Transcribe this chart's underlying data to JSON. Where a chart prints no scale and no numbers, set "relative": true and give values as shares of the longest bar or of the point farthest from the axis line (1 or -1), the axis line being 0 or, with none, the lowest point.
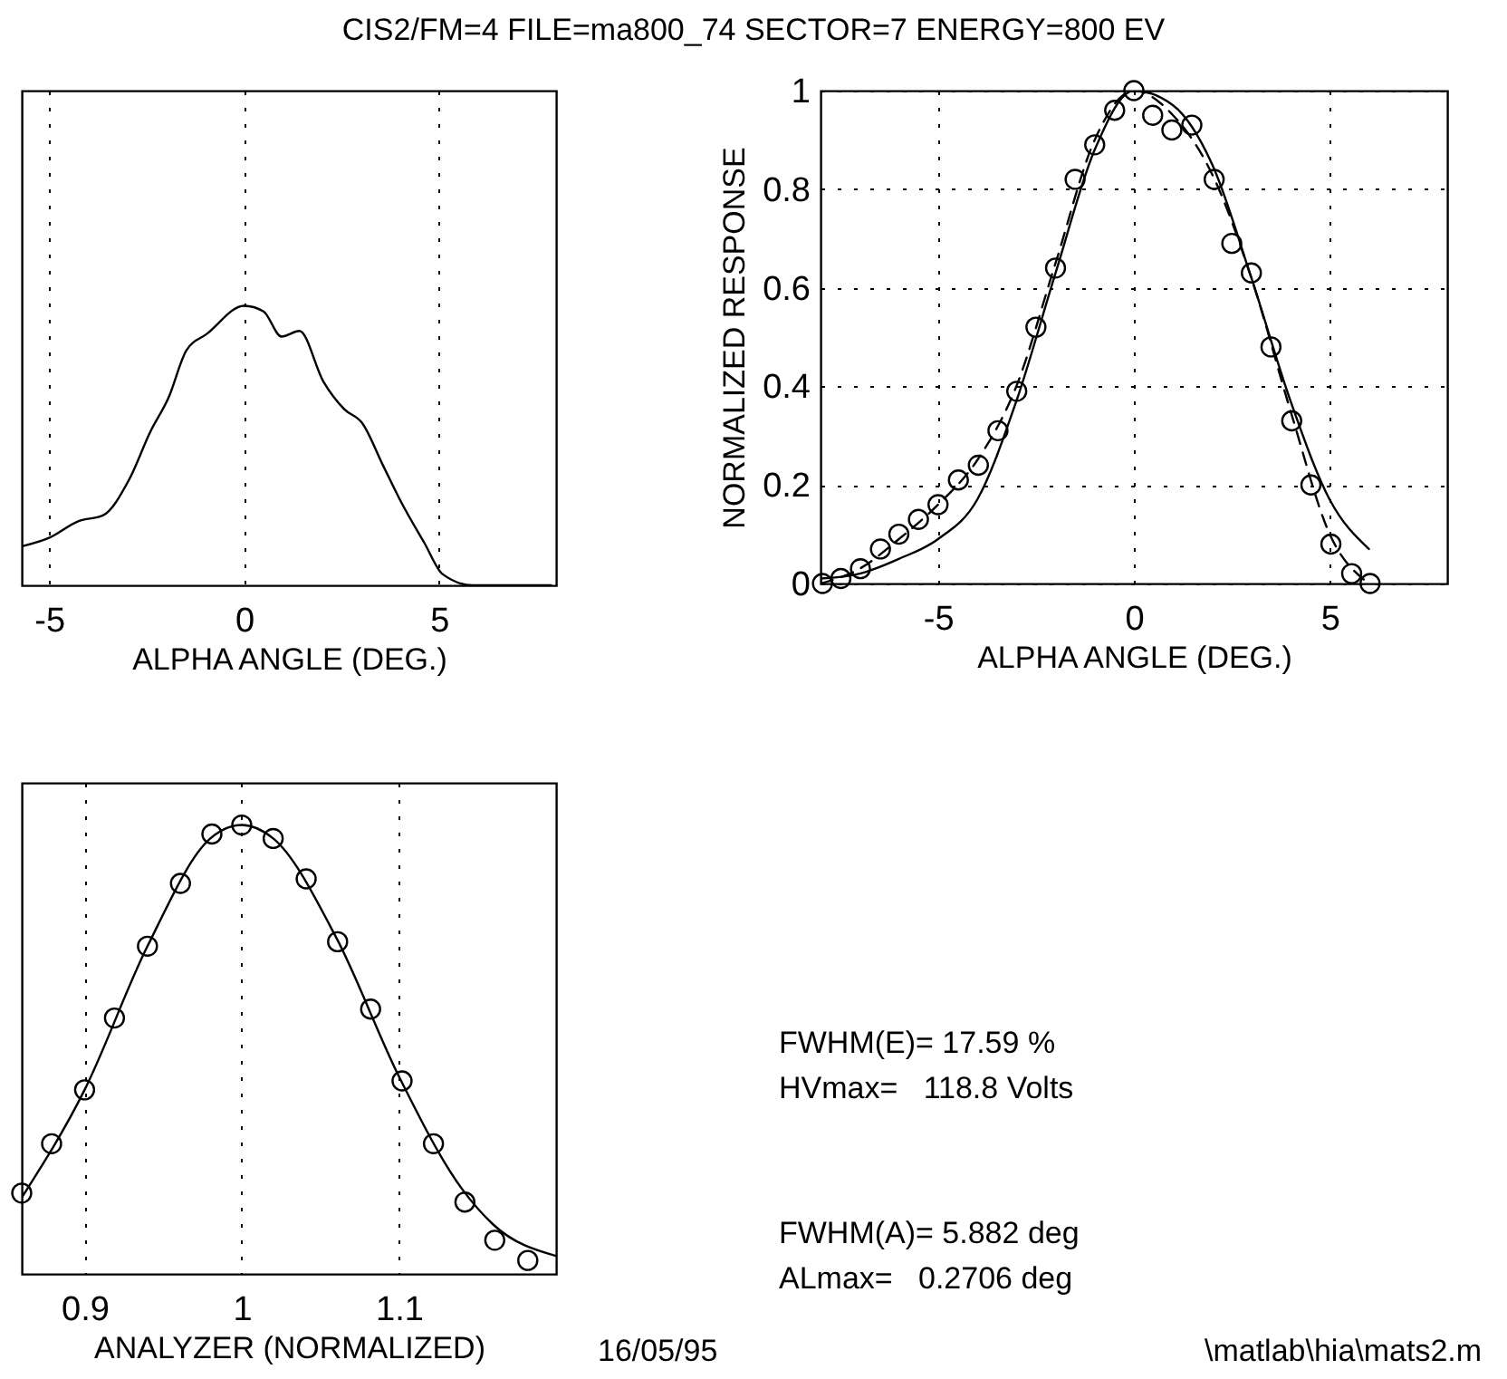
{
  "chart_data": [
    {
      "type": "line",
      "title": "CIS2/FM=4 FILE=ma800_74 SECTOR=7 ENERGY=800 EV",
      "xlabel": "ALPHA ANGLE (DEG.)",
      "relative": true,
      "xlim": [
        -5.7,
        8
      ],
      "xticks": [
        -5,
        0,
        5
      ],
      "grid": "x",
      "series": [
        {
          "color": "#000000",
          "x": [
            -5.69,
            -5.0,
            -4.24,
            -3.62,
            -2.94,
            -2.4,
            -1.94,
            -1.48,
            -0.95,
            0,
            0.5,
            0.96,
            1.42,
            2.03,
            2.57,
            3.03,
            3.56,
            4.02,
            4.63,
            5.09,
            5.86,
            7.87
          ],
          "values": [
            0.14,
            0.17,
            0.23,
            0.25,
            0.38,
            0.55,
            0.67,
            0.84,
            0.9,
            1.0,
            0.98,
            0.89,
            0.91,
            0.73,
            0.63,
            0.58,
            0.43,
            0.3,
            0.15,
            0.04,
            0,
            0
          ]
        }
      ]
    },
    {
      "type": "scatter",
      "xlabel": "ALPHA ANGLE (DEG.)",
      "ylabel": "NORMALIZED RESPONSE",
      "xlim": [
        -8,
        8
      ],
      "xticks": [
        -5,
        0,
        5
      ],
      "ylim": [
        0,
        1
      ],
      "yticks": [
        0,
        0.2,
        0.4,
        0.6,
        0.8,
        1
      ],
      "grid": true,
      "series": [
        {
          "type": "scatter",
          "marker": "circle",
          "color": "#000000",
          "x": [
            -7.95,
            -7.48,
            -6.98,
            -6.47,
            -6.0,
            -5.5,
            -5.0,
            -4.48,
            -3.97,
            -3.47,
            -2.99,
            -2.5,
            -2.0,
            -1.5,
            -1.0,
            -0.49,
            0,
            0.48,
            0.97,
            1.48,
            2.05,
            2.5,
            3.0,
            3.5,
            4.03,
            4.52,
            5.03,
            5.56,
            6.03
          ],
          "values": [
            0,
            0.01,
            0.03,
            0.07,
            0.1,
            0.13,
            0.16,
            0.21,
            0.24,
            0.31,
            0.39,
            0.52,
            0.64,
            0.82,
            0.89,
            0.96,
            1.0,
            0.95,
            0.92,
            0.93,
            0.82,
            0.69,
            0.63,
            0.48,
            0.33,
            0.2,
            0.08,
            0.02,
            0
          ]
        },
        {
          "type": "line",
          "marker": "none",
          "line_style": "solid",
          "color": "#000000",
          "x": [
            -8,
            -7,
            -6,
            -5,
            -4,
            -3,
            -2,
            -1,
            0,
            1,
            2,
            3,
            4,
            5,
            6
          ],
          "values": [
            0.01,
            0.02,
            0.05,
            0.09,
            0.17,
            0.37,
            0.63,
            0.88,
            1.0,
            0.97,
            0.85,
            0.62,
            0.37,
            0.17,
            0.07
          ]
        },
        {
          "type": "line",
          "marker": "none",
          "line_style": "dashed",
          "color": "#000000",
          "x": [
            -8,
            -7,
            -6,
            -5,
            -4,
            -3,
            -2,
            -1,
            0,
            1,
            2,
            3,
            4,
            5,
            6
          ],
          "values": [
            0,
            0.03,
            0.09,
            0.16,
            0.25,
            0.4,
            0.65,
            0.9,
            1.0,
            0.95,
            0.83,
            0.62,
            0.35,
            0.1,
            0
          ]
        }
      ]
    },
    {
      "type": "scatter",
      "xlabel": "ANALYZER (NORMALIZED)",
      "relative": true,
      "xlim": [
        0.86,
        1.2
      ],
      "xticks": [
        0.9,
        1,
        1.1
      ],
      "grid": "x",
      "series": [
        {
          "type": "scatter",
          "marker": "circle",
          "color": "#000000",
          "x": [
            0.86,
            0.879,
            0.9,
            0.919,
            0.94,
            0.961,
            0.981,
            1.0,
            1.02,
            1.041,
            1.061,
            1.082,
            1.102,
            1.122,
            1.142,
            1.161,
            1.182
          ],
          "values": [
            0.18,
            0.29,
            0.41,
            0.57,
            0.73,
            0.87,
            0.98,
            1.0,
            0.97,
            0.88,
            0.74,
            0.59,
            0.43,
            0.29,
            0.16,
            0.075,
            0.03
          ]
        },
        {
          "type": "line",
          "marker": "none",
          "line_style": "solid",
          "color": "#000000",
          "x": [
            0.86,
            0.9,
            0.94,
            0.98,
            1.0,
            1.02,
            1.06,
            1.1,
            1.14,
            1.16,
            1.2
          ],
          "values": [
            0.17,
            0.41,
            0.73,
            0.97,
            1.0,
            0.97,
            0.75,
            0.44,
            0.19,
            0.11,
            0.04
          ]
        }
      ]
    },
    {
      "type": "other",
      "annotations": [
        "FWHM(E)= 17.59 %",
        "HVmax=   118.8 Volts",
        "FWHM(A)= 5.882 deg",
        "ALmax=   0.2706 deg",
        "16/05/95",
        "\\matlab\\hia\\mats2.m"
      ]
    }
  ]
}
